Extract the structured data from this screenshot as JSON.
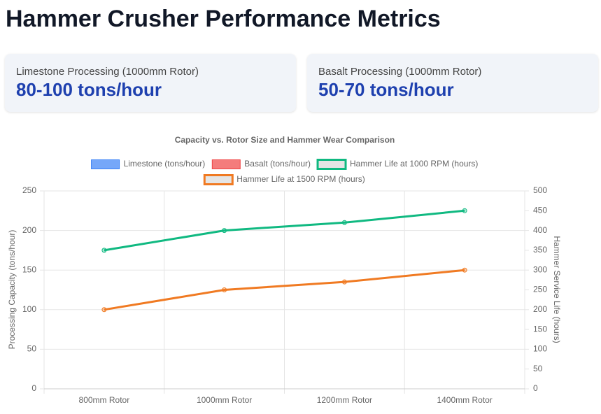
{
  "header": {
    "title": "Hammer Crusher Performance Metrics"
  },
  "cards": [
    {
      "label": "Limestone Processing (1000mm Rotor)",
      "value": "80-100 tons/hour"
    },
    {
      "label": "Basalt Processing (1000mm Rotor)",
      "value": "50-70 tons/hour"
    }
  ],
  "chart_data": {
    "type": "bar",
    "title": "Capacity vs. Rotor Size and Hammer Wear Comparison",
    "categories": [
      "800mm Rotor",
      "1000mm Rotor",
      "1200mm Rotor",
      "1400mm Rotor"
    ],
    "series": [
      {
        "name": "Limestone (tons/hour)",
        "type": "bar",
        "color": "#3b82f6",
        "values": [
          null,
          null,
          null,
          null
        ]
      },
      {
        "name": "Basalt (tons/hour)",
        "type": "bar",
        "color": "#ef4444",
        "values": [
          null,
          null,
          null,
          null
        ]
      },
      {
        "name": "Hammer Life at 1000 RPM (hours)",
        "type": "line",
        "axis": "y2",
        "color": "#10b981",
        "values": [
          350,
          400,
          420,
          450
        ]
      },
      {
        "name": "Hammer Life at 1500 RPM (hours)",
        "type": "line",
        "axis": "y2",
        "color": "#f07a22",
        "values": [
          200,
          250,
          270,
          300
        ]
      }
    ],
    "ylabel": "Processing Capacity (tons/hour)",
    "y2label": "Hammer Service Life (hours)",
    "ylim": [
      0,
      250
    ],
    "yticks": [
      0,
      50,
      100,
      150,
      200,
      250
    ],
    "y2lim": [
      0,
      500
    ],
    "y2ticks": [
      0,
      50,
      100,
      150,
      200,
      250,
      300,
      350,
      400,
      450,
      500
    ],
    "grid": true
  }
}
